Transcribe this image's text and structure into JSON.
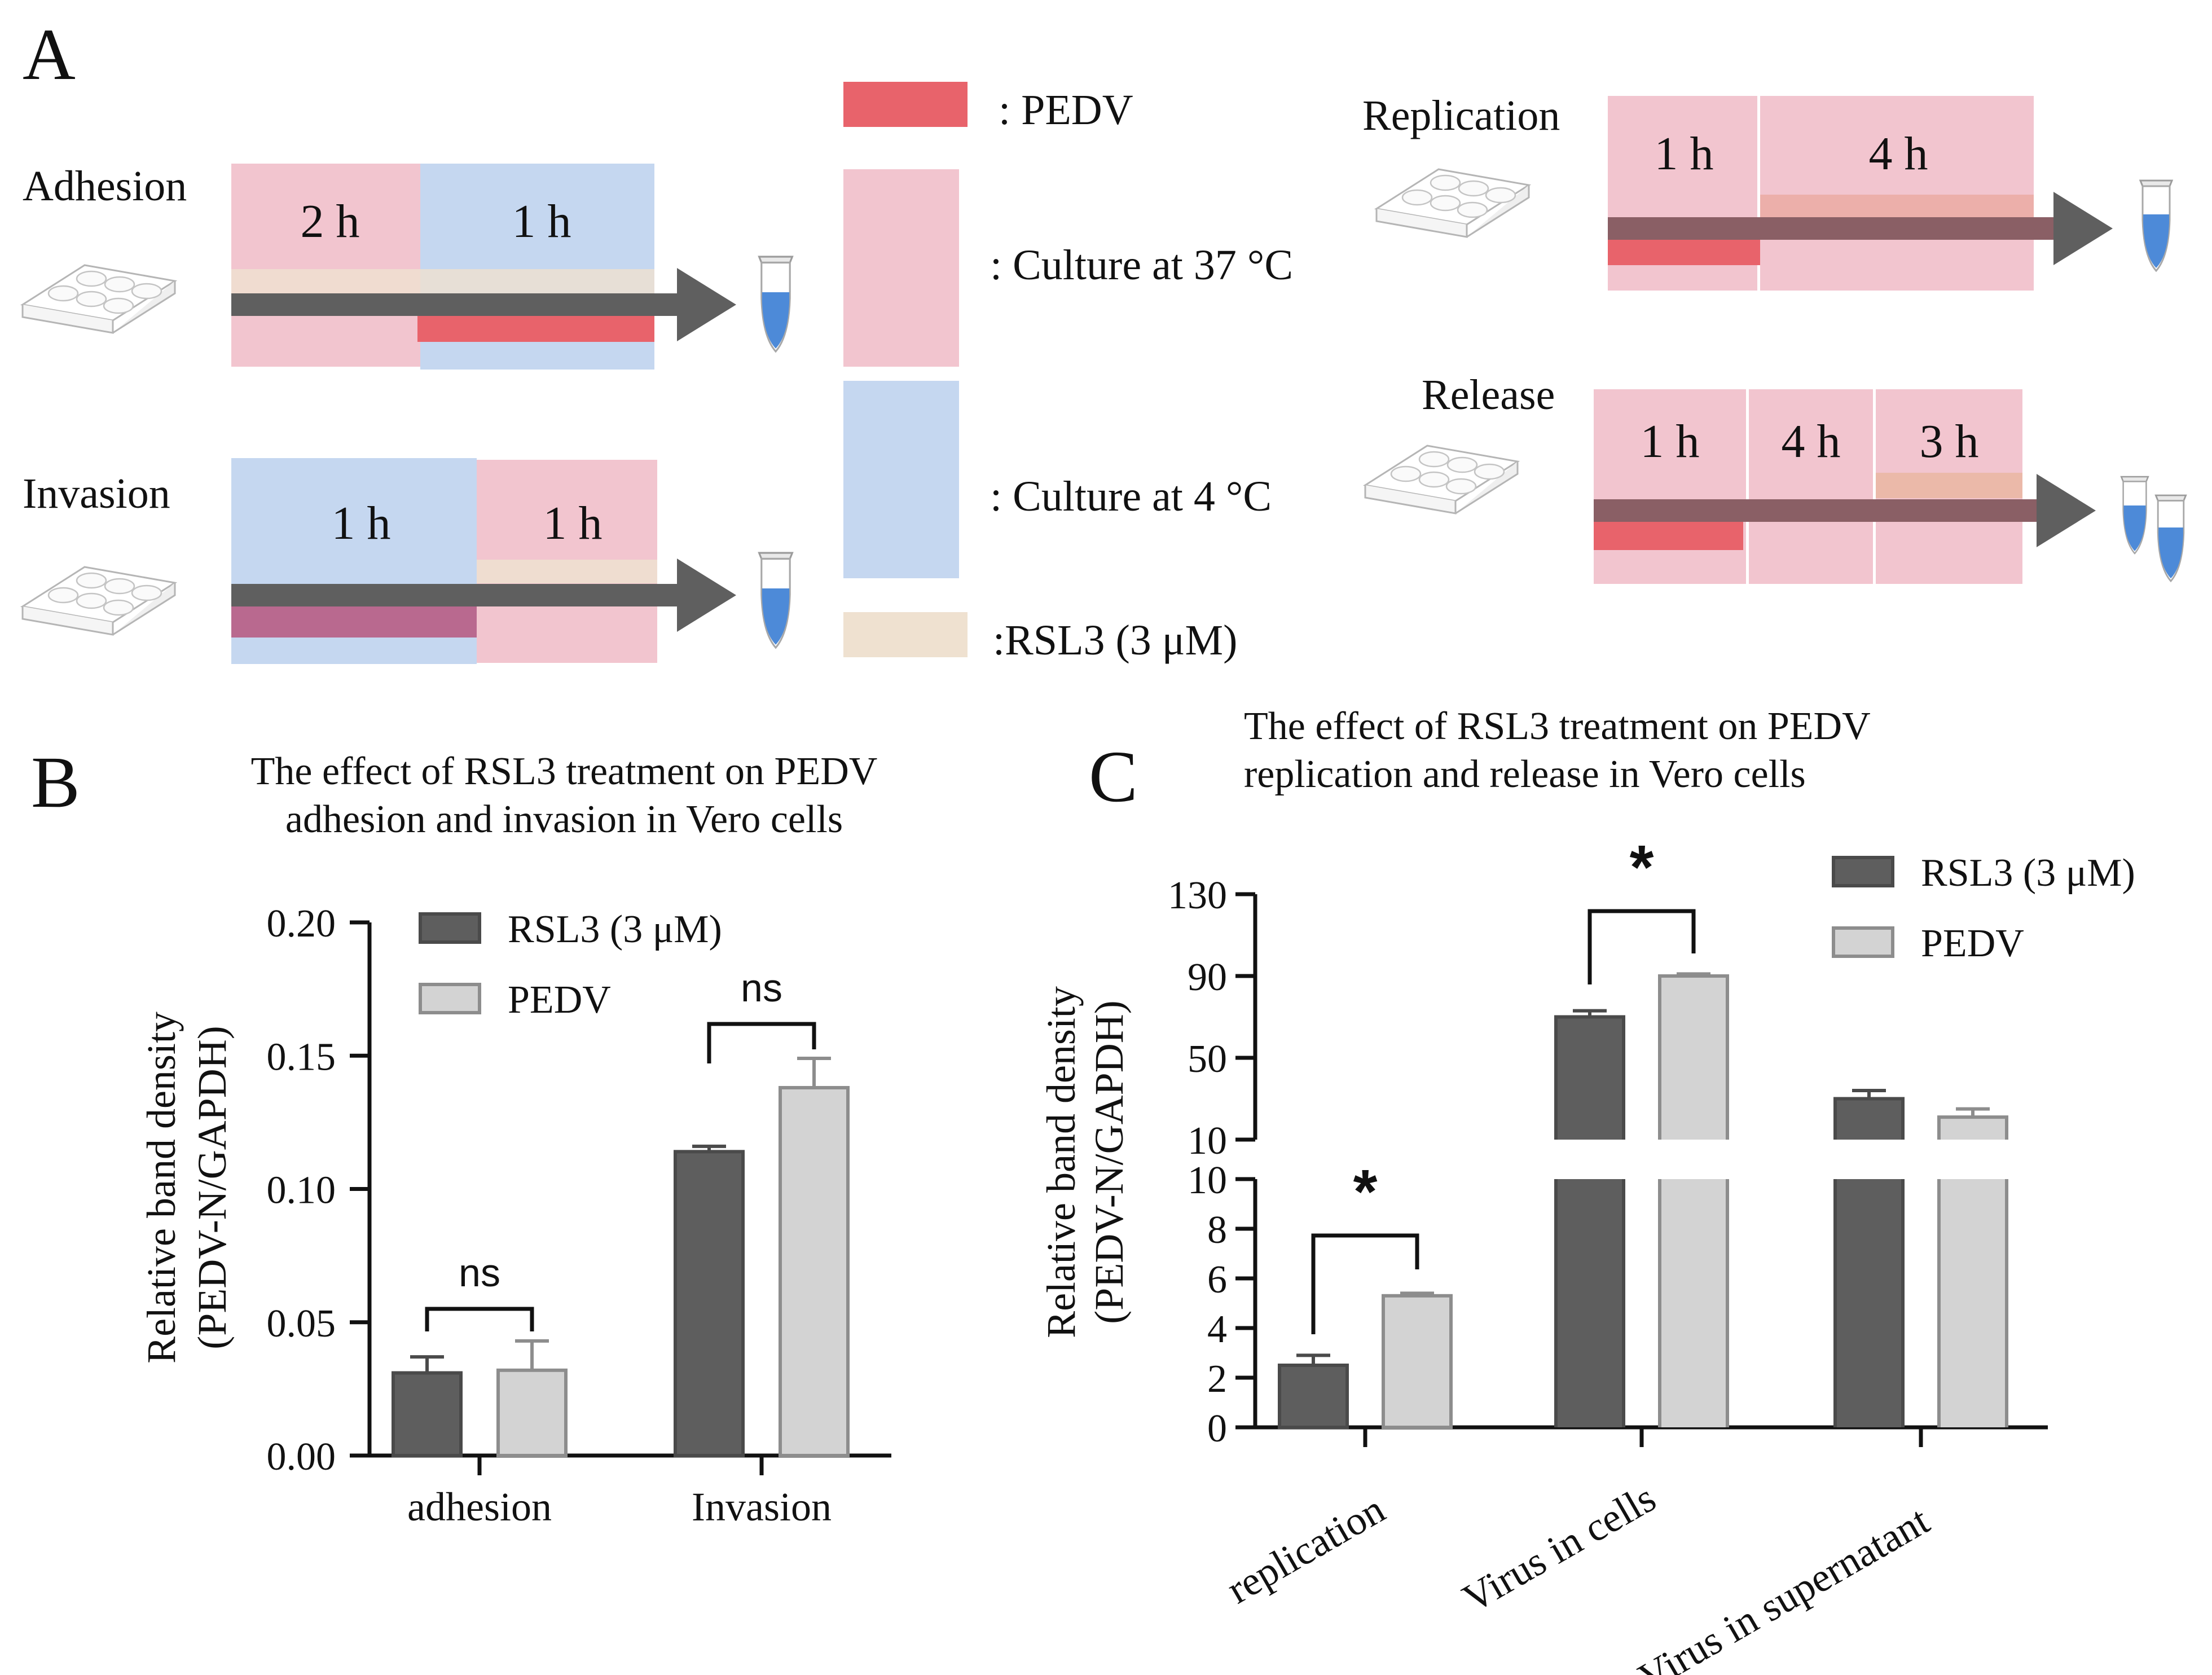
{
  "panel_labels": {
    "a": "A",
    "b": "B",
    "c": "C"
  },
  "colors": {
    "pedv_band": "#e8636b",
    "culture_37": "#f2c5cf",
    "culture_4": "#c5d7f0",
    "rsl3_band": "#efe1d0",
    "arrow": "#5f5f5f",
    "tube": "#4d8ad8",
    "bar_rsl3": "#5e5e5e",
    "bar_pedv": "#d3d3d3"
  },
  "legend_a": {
    "pedv": ": PEDV",
    "culture37": ": Culture at 37 °C",
    "culture4": ": Culture at 4 °C",
    "rsl3": ":RSL3 (3 μM)"
  },
  "protocols": [
    {
      "name": "Adhesion",
      "segments": [
        {
          "label": "2 h",
          "temp": "37"
        },
        {
          "label": "1 h",
          "temp": "4"
        }
      ],
      "tubes": 1
    },
    {
      "name": "Invasion",
      "segments": [
        {
          "label": "1 h",
          "temp": "4"
        },
        {
          "label": "1 h",
          "temp": "37"
        }
      ],
      "tubes": 1
    },
    {
      "name": "Replication",
      "segments": [
        {
          "label": "1 h",
          "temp": "37"
        },
        {
          "label": "4 h",
          "temp": "37"
        }
      ],
      "tubes": 1
    },
    {
      "name": "Release",
      "segments": [
        {
          "label": "1 h",
          "temp": "37"
        },
        {
          "label": "4 h",
          "temp": "37"
        },
        {
          "label": "3 h",
          "temp": "37"
        }
      ],
      "tubes": 2
    }
  ],
  "chart_data": [
    {
      "type": "bar",
      "title": "The effect of RSL3 treatment on PEDV adhesion and invasion in Vero cells",
      "title_lines": [
        "The effect of RSL3 treatment on PEDV",
        "adhesion and invasion in Vero cells"
      ],
      "ylabel_lines": [
        "Relative band density",
        "(PEDV-N/GAPDH)"
      ],
      "xlabel": "",
      "categories": [
        "adhesion",
        "Invasion"
      ],
      "series": [
        {
          "name": "RSL3 (3 μM)",
          "values": [
            0.031,
            0.114
          ],
          "errors": [
            0.006,
            0.002
          ]
        },
        {
          "name": "PEDV",
          "values": [
            0.032,
            0.138
          ],
          "errors": [
            0.011,
            0.011
          ]
        }
      ],
      "ylim": [
        0,
        0.2
      ],
      "yticks": [
        "0.00",
        "0.05",
        "0.10",
        "0.15",
        "0.20"
      ],
      "significance": [
        "ns",
        "ns"
      ],
      "legend_position": "top"
    },
    {
      "type": "bar",
      "title": "The effect of RSL3 treatment on PEDV replication and release in Vero cells",
      "title_lines": [
        "The effect of RSL3 treatment on PEDV",
        "replication and release in Vero cells"
      ],
      "ylabel_lines": [
        "Relative band density",
        "(PEDV-N/GAPDH)"
      ],
      "xlabel": "",
      "categories": [
        "replication",
        "Virus in cells",
        "Virus in supernatant"
      ],
      "series": [
        {
          "name": "RSL3 (3 μM)",
          "values": [
            2.5,
            70,
            30
          ],
          "errors": [
            0.4,
            3,
            4
          ]
        },
        {
          "name": "PEDV",
          "values": [
            5.3,
            90,
            21
          ],
          "errors": [
            0.1,
            1,
            4
          ]
        }
      ],
      "ylim": [
        0,
        130
      ],
      "axis_break": {
        "lower": [
          0,
          10
        ],
        "upper": [
          10,
          130
        ]
      },
      "yticks_lower": [
        "0",
        "2",
        "4",
        "6",
        "8",
        "10"
      ],
      "yticks_upper": [
        "10",
        "50",
        "90",
        "130"
      ],
      "significance": [
        "*",
        "*",
        ""
      ],
      "legend_position": "top-right"
    }
  ]
}
